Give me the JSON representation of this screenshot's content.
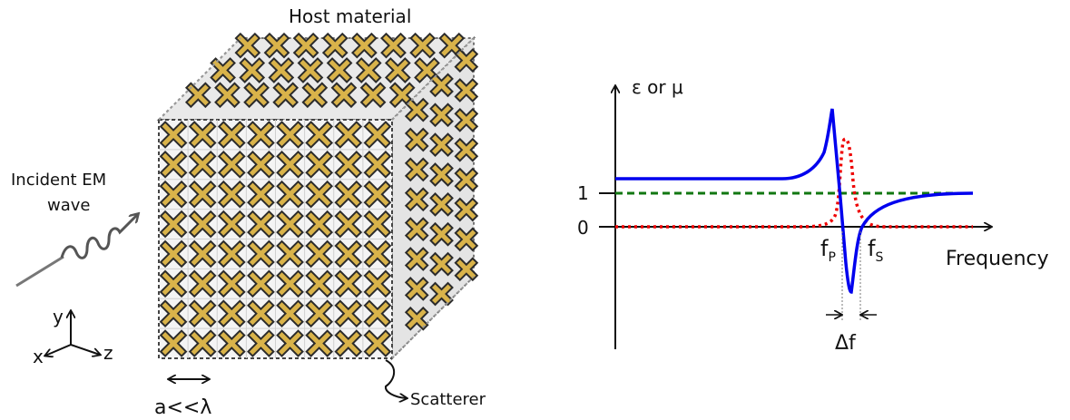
{
  "left_figure": {
    "host_label": "Host material",
    "incident_label_line1": "Incident EM",
    "incident_label_line2": "wave",
    "axis_y": "y",
    "axis_x": "x",
    "axis_z": "z",
    "lattice_label": "a<<λ",
    "scatterer_label": "Scatterer",
    "grid": {
      "rows": 8,
      "cols": 8
    },
    "colors": {
      "scatterer": "#d9b34a",
      "outline": "#2b2b2b",
      "wave": "#555555"
    }
  },
  "right_figure": {
    "y_axis_label": "ε or μ",
    "x_axis_label": "Frequency",
    "tick_one": "1",
    "tick_zero": "0",
    "fp_label": "f",
    "fp_sub": "P",
    "fs_label": "f",
    "fs_sub": "S",
    "delta_label": "Δf",
    "colors": {
      "blue": "#0000ee",
      "red": "#ee0000",
      "green": "#117711"
    }
  }
}
